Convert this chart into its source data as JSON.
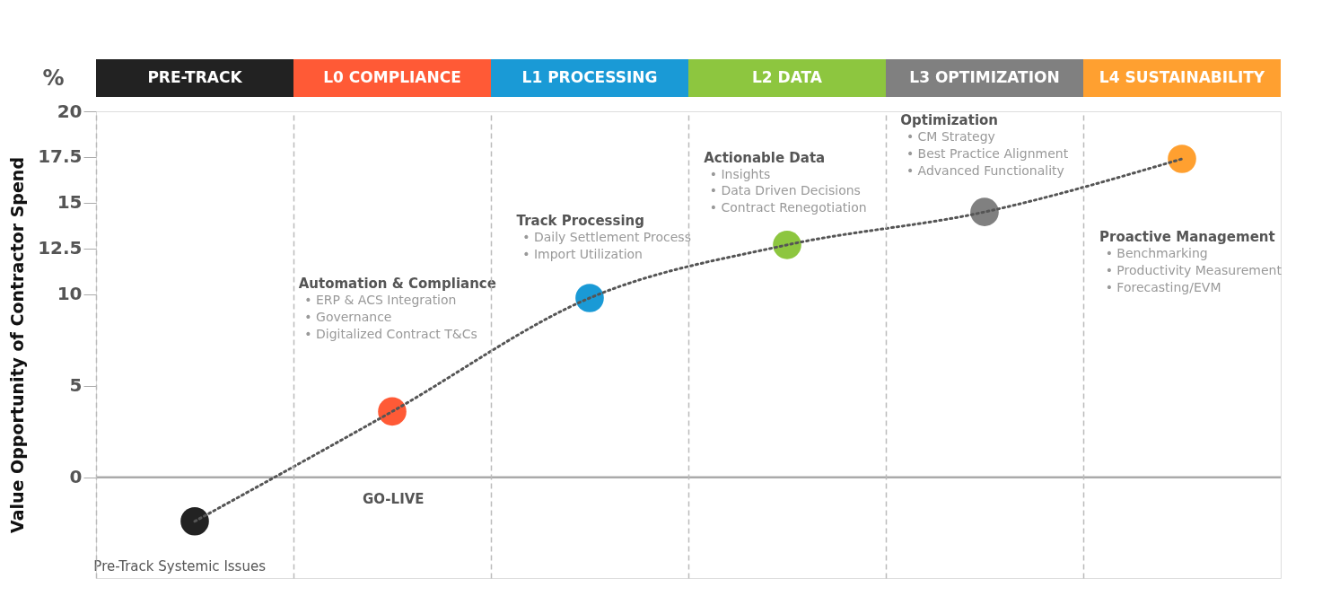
{
  "chart_data": {
    "type": "scatter",
    "ylabel": "Value Opportunity of Contractor Spend",
    "categories": [
      "PRE-TRACK",
      "L0 COMPLIANCE",
      "L1  PROCESSING",
      "L2 DATA",
      "L3 OPTIMIZATION",
      "L4 SUSTAINABILITY"
    ],
    "colors": [
      "#222222",
      "#ff5a36",
      "#1a9ad6",
      "#8dc63f",
      "#808080",
      "#ffa030"
    ],
    "series": [
      {
        "type": "line",
        "color": "#555555",
        "line_style": "dotted",
        "values": [
          -2.4,
          3.6,
          9.8,
          12.7,
          14.5,
          17.4
        ]
      },
      {
        "colors": [
          "#222222",
          "#ff5a36",
          "#1a9ad6",
          "#8dc63f",
          "#808080",
          "#ffa030"
        ],
        "values": [
          -2.4,
          3.6,
          9.8,
          12.7,
          14.5,
          17.4
        ]
      }
    ],
    "ylim": [
      -5.5,
      20
    ],
    "yticks": [
      0,
      5,
      10,
      12.5,
      15,
      17.5,
      20
    ],
    "grid": "x",
    "ref_lines": [
      {
        "axis": "y",
        "value": 0,
        "color": "#aaaaaa"
      }
    ],
    "annotations": [
      "%",
      "Automation & Compliance",
      "•    ERP & ACS Integration",
      "•    Governance",
      "•    Digitalized Contract T&Cs",
      "Track Processing",
      "•    Daily Settlement Process",
      "•    Import Utilization",
      "Actionable Data",
      "•    Insights",
      "•    Data Driven Decisions",
      "•    Contract Renegotiation",
      "Optimization",
      "•    CM Strategy",
      "•    Best Practice Alignment",
      "•    Advanced Functionality",
      "Proactive Management",
      "•    Benchmarking",
      "•    Productivity Measurement",
      "•    Forecasting/EVM",
      "GO-LIVE",
      "Pre-Track Systemic Issues"
    ]
  }
}
